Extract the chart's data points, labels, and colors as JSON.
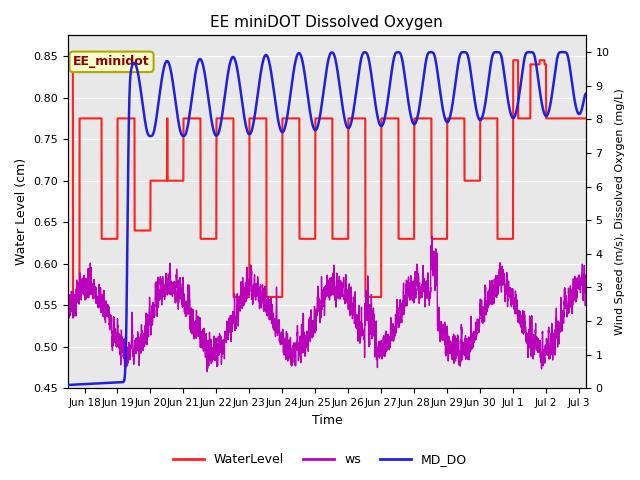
{
  "title": "EE miniDOT Dissolved Oxygen",
  "xlabel": "Time",
  "ylabel_left": "Water Level (cm)",
  "ylabel_right": "Wind Speed (m/s), Dissolved Oxygen (mg/L)",
  "annotation": "EE_minidot",
  "left_ylim": [
    0.45,
    0.875
  ],
  "right_ylim": [
    0.0,
    10.5
  ],
  "left_yticks": [
    0.45,
    0.5,
    0.55,
    0.6,
    0.65,
    0.7,
    0.75,
    0.8,
    0.85
  ],
  "right_yticks": [
    0.0,
    1.0,
    2.0,
    3.0,
    4.0,
    5.0,
    6.0,
    7.0,
    8.0,
    9.0,
    10.0
  ],
  "xtick_labels": [
    "Jun 18",
    "Jun 19",
    "Jun 20",
    "Jun 21",
    "Jun 22",
    "Jun 23",
    "Jun 24",
    "Jun 25",
    "Jun 26",
    "Jun 27",
    "Jun 28",
    "Jun 29",
    "Jun 30",
    "Jul 1",
    "Jul 2",
    "Jul 3"
  ],
  "wl_color": "#FF2020",
  "ws_color": "#BB00BB",
  "do_color": "#2020DD",
  "wl_linewidth": 1.5,
  "ws_linewidth": 1.0,
  "do_linewidth": 1.8,
  "plot_bg_color": "#E8E8E8",
  "legend_items": [
    "WaterLevel",
    "ws",
    "MD_DO"
  ],
  "legend_colors": [
    "#FF2020",
    "#BB00BB",
    "#2020DD"
  ]
}
